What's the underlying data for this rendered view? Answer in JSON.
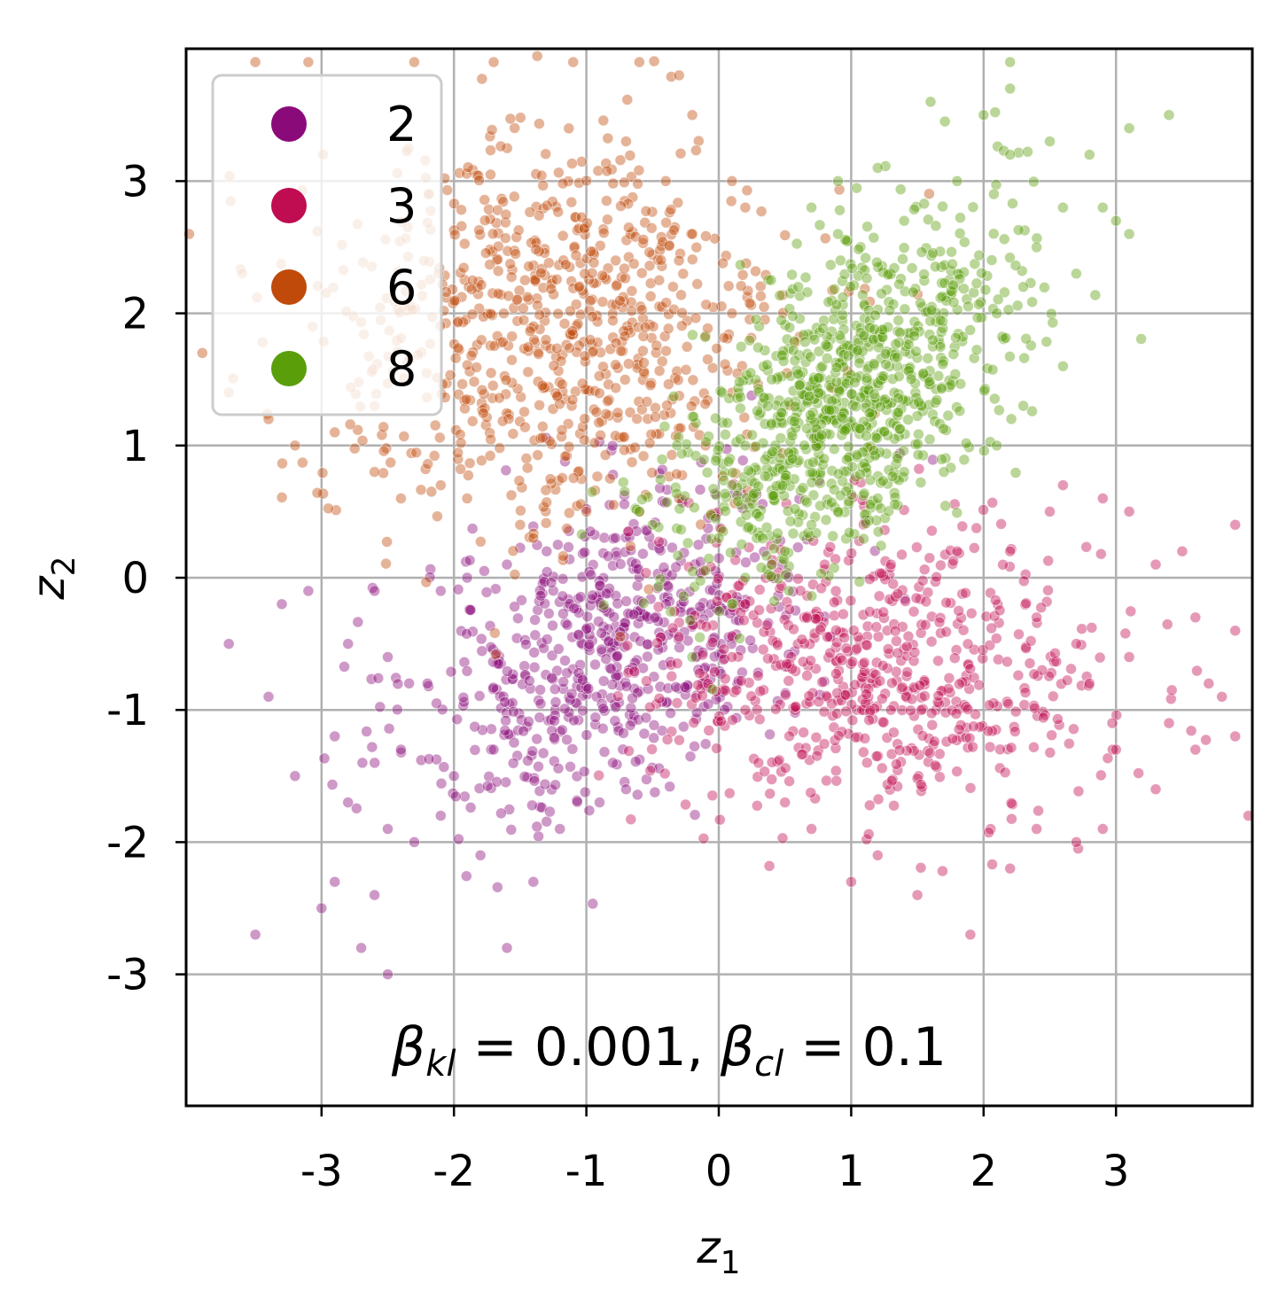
{
  "chart_data": {
    "type": "scatter",
    "xlabel": "z",
    "xlabel_sub": "1",
    "ylabel": "z",
    "ylabel_sub": "2",
    "xlim": [
      -4,
      4
    ],
    "ylim": [
      -4,
      4
    ],
    "xticks": [
      -3,
      -2,
      -1,
      0,
      1,
      2,
      3
    ],
    "yticks": [
      -3,
      -2,
      -1,
      0,
      1,
      2,
      3
    ],
    "xtick_labels": [
      "-3",
      "-2",
      "-1",
      "0",
      "1",
      "2",
      "3"
    ],
    "ytick_labels": [
      "-3",
      "-2",
      "-1",
      "0",
      "1",
      "2",
      "3"
    ],
    "grid": true,
    "legend_position": "top-left",
    "annotation": {
      "beta": "β",
      "sub1": "kl",
      "val1": " = 0.001, ",
      "sub2": "cl",
      "val2": " = 0.1"
    },
    "series": [
      {
        "name": "2",
        "color": "#8b0a7a",
        "center": [
          -0.8,
          -0.5
        ],
        "spread": [
          0.75,
          0.65
        ],
        "correlation": 0.45,
        "count": 650,
        "points": [
          [
            -3.7,
            -0.5
          ],
          [
            -3.3,
            -0.2
          ],
          [
            -3.1,
            -0.1
          ],
          [
            -3.4,
            -0.9
          ],
          [
            -3.2,
            -1.5
          ],
          [
            -2.9,
            -1.2
          ],
          [
            -2.8,
            -1.7
          ],
          [
            -2.5,
            -1.9
          ],
          [
            -2.3,
            -2.0
          ],
          [
            -2.6,
            -2.4
          ],
          [
            -3.0,
            -2.5
          ],
          [
            -2.9,
            -2.3
          ],
          [
            -3.5,
            -2.7
          ],
          [
            -2.7,
            -2.8
          ],
          [
            -2.5,
            -3.0
          ],
          [
            -1.6,
            -2.8
          ],
          [
            -1.4,
            -2.3
          ],
          [
            -1.8,
            -2.1
          ],
          [
            -2.1,
            -1.8
          ],
          [
            -2.0,
            -1.5
          ],
          [
            -1.7,
            -1.3
          ],
          [
            -2.4,
            -1.3
          ],
          [
            -2.2,
            -0.8
          ],
          [
            -2.5,
            -0.6
          ],
          [
            -2.8,
            -0.5
          ],
          [
            -2.6,
            -0.1
          ],
          [
            -2.1,
            -0.1
          ],
          [
            -1.9,
            0.0
          ],
          [
            -1.6,
            0.1
          ],
          [
            -1.3,
            0.2
          ],
          [
            -1.2,
            -1.9
          ],
          [
            -0.9,
            -1.7
          ],
          [
            -0.8,
            -1.4
          ],
          [
            -0.7,
            -1.6
          ]
        ]
      },
      {
        "name": "3",
        "color": "#c00c50",
        "center": [
          1.2,
          -0.7
        ],
        "spread": [
          0.85,
          0.55
        ],
        "correlation": -0.1,
        "count": 650,
        "points": [
          [
            2.6,
            0.7
          ],
          [
            2.9,
            0.6
          ],
          [
            2.5,
            0.5
          ],
          [
            3.1,
            0.5
          ],
          [
            3.9,
            0.4
          ],
          [
            3.5,
            0.2
          ],
          [
            3.3,
            0.1
          ],
          [
            3.6,
            -0.3
          ],
          [
            3.9,
            -0.4
          ],
          [
            3.7,
            -0.8
          ],
          [
            3.8,
            -0.9
          ],
          [
            3.4,
            -1.1
          ],
          [
            3.6,
            -1.3
          ],
          [
            3.9,
            -1.2
          ],
          [
            4.0,
            -1.8
          ],
          [
            3.3,
            -1.6
          ],
          [
            3.0,
            -1.3
          ],
          [
            2.9,
            -1.9
          ],
          [
            2.7,
            -2.0
          ],
          [
            2.4,
            -1.9
          ],
          [
            2.2,
            -2.2
          ],
          [
            1.9,
            -2.7
          ],
          [
            1.5,
            -2.4
          ],
          [
            1.2,
            -2.1
          ],
          [
            1.0,
            -2.3
          ],
          [
            0.7,
            -1.9
          ],
          [
            0.5,
            -1.7
          ],
          [
            0.3,
            -1.4
          ],
          [
            0.2,
            -1.0
          ],
          [
            0.1,
            -0.6
          ],
          [
            0.2,
            -0.2
          ],
          [
            0.4,
            0.1
          ],
          [
            0.8,
            0.1
          ],
          [
            1.3,
            0.1
          ],
          [
            1.8,
            0.2
          ],
          [
            2.2,
            0.2
          ],
          [
            2.4,
            -0.3
          ],
          [
            2.7,
            -0.5
          ],
          [
            2.8,
            -0.8
          ],
          [
            3.1,
            -0.6
          ]
        ]
      },
      {
        "name": "6",
        "color": "#c04a0a",
        "center": [
          -1.25,
          1.85
        ],
        "spread": [
          0.9,
          0.75
        ],
        "correlation": 0.0,
        "count": 800,
        "points": [
          [
            -3.5,
            3.9
          ],
          [
            -3.1,
            3.9
          ],
          [
            -2.3,
            3.9
          ],
          [
            -1.7,
            3.9
          ],
          [
            -1.1,
            3.9
          ],
          [
            -0.6,
            3.9
          ],
          [
            -0.3,
            3.8
          ],
          [
            -0.2,
            3.5
          ],
          [
            -4.0,
            2.6
          ],
          [
            -3.6,
            2.3
          ],
          [
            -3.9,
            1.7
          ],
          [
            -3.7,
            1.4
          ],
          [
            -3.4,
            1.2
          ],
          [
            -3.2,
            1.0
          ],
          [
            -2.9,
            1.1
          ],
          [
            -2.6,
            1.3
          ],
          [
            -2.6,
            0.8
          ],
          [
            -2.4,
            0.6
          ],
          [
            -2.1,
            0.7
          ],
          [
            -1.9,
            0.6
          ],
          [
            -1.5,
            0.4
          ],
          [
            -1.4,
            0.3
          ],
          [
            -1.0,
            0.5
          ],
          [
            -0.6,
            0.5
          ],
          [
            -0.3,
            0.6
          ],
          [
            -0.1,
            1.0
          ],
          [
            0.1,
            1.4
          ],
          [
            0.1,
            2.0
          ],
          [
            0.2,
            2.8
          ],
          [
            0.1,
            3.0
          ],
          [
            -0.2,
            2.6
          ],
          [
            -0.4,
            3.0
          ],
          [
            -0.7,
            3.3
          ]
        ]
      },
      {
        "name": "8",
        "color": "#5a9e0a",
        "center": [
          0.95,
          1.35
        ],
        "spread": [
          0.6,
          0.65
        ],
        "correlation": 0.5,
        "count": 950,
        "points": [
          [
            2.2,
            3.9
          ],
          [
            2.2,
            3.7
          ],
          [
            1.6,
            3.6
          ],
          [
            2.0,
            3.5
          ],
          [
            3.4,
            3.5
          ],
          [
            2.5,
            3.3
          ],
          [
            3.1,
            3.4
          ],
          [
            2.8,
            3.2
          ],
          [
            2.2,
            3.2
          ],
          [
            1.8,
            3.0
          ],
          [
            1.2,
            3.1
          ],
          [
            0.9,
            3.0
          ],
          [
            0.7,
            2.8
          ],
          [
            1.4,
            2.7
          ],
          [
            2.6,
            2.8
          ],
          [
            2.9,
            2.8
          ],
          [
            3.0,
            2.7
          ],
          [
            3.1,
            2.6
          ],
          [
            2.4,
            2.5
          ],
          [
            2.7,
            2.3
          ],
          [
            2.3,
            2.2
          ],
          [
            2.1,
            2.0
          ],
          [
            2.6,
            1.6
          ],
          [
            2.3,
            1.3
          ],
          [
            2.1,
            1.0
          ],
          [
            1.7,
            0.8
          ],
          [
            1.4,
            0.8
          ],
          [
            1.2,
            0.6
          ],
          [
            0.9,
            0.5
          ],
          [
            0.7,
            0.4
          ],
          [
            0.5,
            0.2
          ],
          [
            0.4,
            0.1
          ],
          [
            0.2,
            0.0
          ],
          [
            0.0,
            0.3
          ],
          [
            0.1,
            0.7
          ],
          [
            0.2,
            1.0
          ],
          [
            0.4,
            1.5
          ],
          [
            0.6,
            2.2
          ],
          [
            0.9,
            2.6
          ],
          [
            -0.6,
            0.5
          ],
          [
            -0.5,
            0.4
          ],
          [
            -0.2,
            -0.6
          ],
          [
            0.1,
            -0.2
          ]
        ]
      }
    ]
  }
}
